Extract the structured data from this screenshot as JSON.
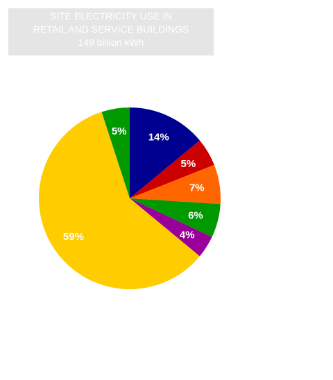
{
  "chart_data": {
    "type": "pie",
    "title": [
      "SITE ELECTRICITY USE IN",
      "RETAIL AND SERVICE BUILDINGS",
      "149 billion kWh"
    ],
    "start_angle_deg": 0,
    "direction": "clockwise",
    "slices": [
      {
        "value": 14,
        "label": "14%",
        "color": "#000090"
      },
      {
        "value": 5,
        "label": "5%",
        "color": "#cc0000"
      },
      {
        "value": 7,
        "label": "7%",
        "color": "#ff6600"
      },
      {
        "value": 6,
        "label": "6%",
        "color": "#009900"
      },
      {
        "value": 4,
        "label": "4%",
        "color": "#990099"
      },
      {
        "value": 59,
        "label": "59%",
        "color": "#ffcc00"
      },
      {
        "value": 5,
        "label": "5%",
        "color": "#009900"
      }
    ]
  }
}
